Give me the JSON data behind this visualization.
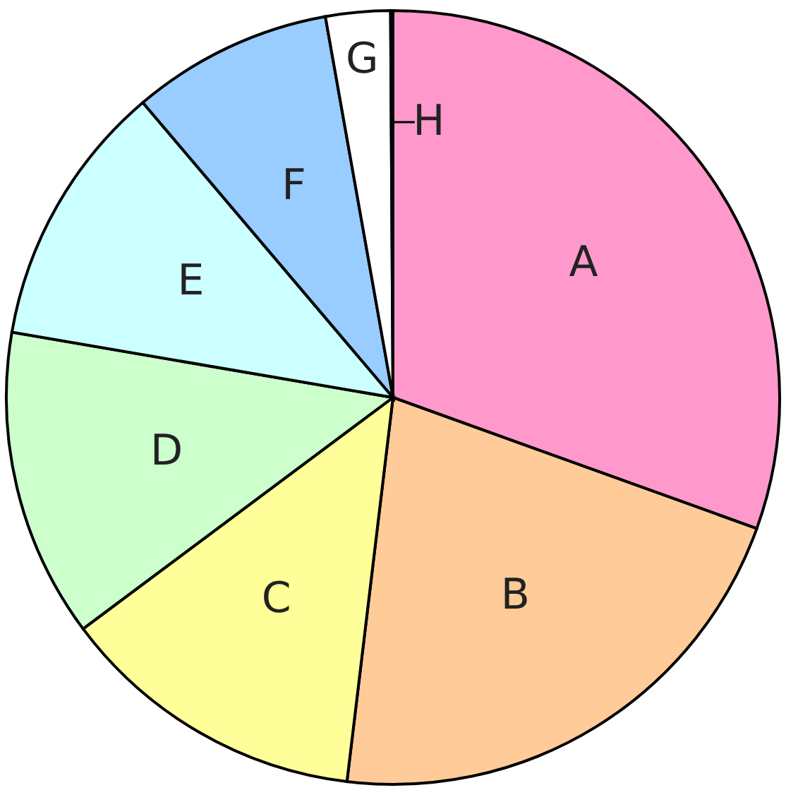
{
  "chart_data": {
    "type": "pie",
    "categories": [
      "A",
      "B",
      "C",
      "D",
      "E",
      "F",
      "G",
      "H"
    ],
    "values": [
      30.5,
      21.4,
      12.9,
      12.9,
      11.1,
      8.4,
      2.7,
      0.1
    ],
    "colors": [
      "#ff99cc",
      "#ffcc99",
      "#ffff99",
      "#ccffcc",
      "#ccffff",
      "#99ccff",
      "#ffffff",
      "#ff99cc"
    ]
  }
}
